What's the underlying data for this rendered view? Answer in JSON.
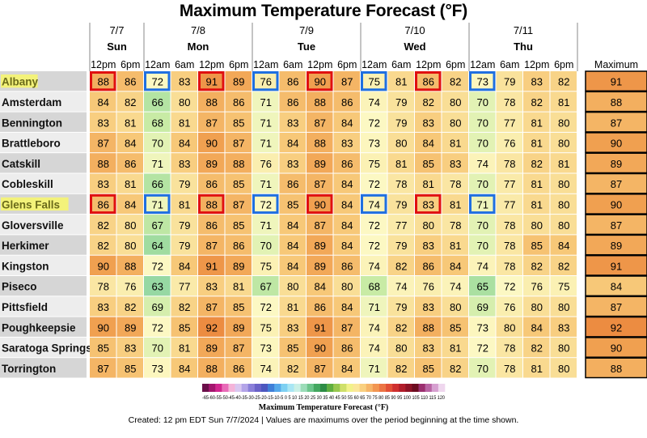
{
  "title": "Maximum Temperature Forecast (°F)",
  "footer": "Created: 12 pm EDT Sun 7/7/2024  |  Values are maximums over the period beginning at the time shown.",
  "colorbar_label": "Maximum Temperature Forecast (°F)",
  "colorbar_ticks": "-65-60-55-50-45-40-35-30-25-20-15-10-5 0  5 10 15 20 25 30 35 40 45 50 55 60 65 70 75 80 85 90 95 100 105 110 115 120",
  "max_header": "Maximum",
  "days": [
    {
      "date": "7/7",
      "day": "Sun",
      "span": 2
    },
    {
      "date": "7/8",
      "day": "Mon",
      "span": 4
    },
    {
      "date": "7/9",
      "day": "Tue",
      "span": 4
    },
    {
      "date": "7/10",
      "day": "Wed",
      "span": 4
    },
    {
      "date": "7/11",
      "day": "Thu",
      "span": 4
    }
  ],
  "times": [
    "12pm",
    "6pm",
    "12am",
    "6am",
    "12pm",
    "6pm",
    "12am",
    "6am",
    "12pm",
    "6pm",
    "12am",
    "6am",
    "12pm",
    "6pm",
    "12am",
    "6am",
    "12pm",
    "6pm"
  ],
  "highlighted_locations": [
    "Albany",
    "Glens Falls"
  ],
  "chart_data": {
    "type": "heatmap",
    "title": "Maximum Temperature Forecast (°F)",
    "x": [
      "12pm",
      "6pm",
      "12am",
      "6am",
      "12pm",
      "6pm",
      "12am",
      "6am",
      "12pm",
      "6pm",
      "12am",
      "6am",
      "12pm",
      "6pm",
      "12am",
      "6am",
      "12pm",
      "6pm"
    ],
    "y": [
      "Albany",
      "Amsterdam",
      "Bennington",
      "Brattleboro",
      "Catskill",
      "Cobleskill",
      "Glens Falls",
      "Gloversville",
      "Herkimer",
      "Kingston",
      "Piseco",
      "Pittsfield",
      "Poughkeepsie",
      "Saratoga Springs",
      "Torrington"
    ],
    "values": [
      [
        88,
        86,
        72,
        83,
        91,
        89,
        76,
        86,
        90,
        87,
        75,
        81,
        86,
        82,
        73,
        79,
        83,
        82
      ],
      [
        84,
        82,
        66,
        80,
        88,
        86,
        71,
        86,
        88,
        86,
        74,
        79,
        82,
        80,
        70,
        78,
        82,
        81
      ],
      [
        83,
        81,
        68,
        81,
        87,
        85,
        71,
        83,
        87,
        84,
        72,
        79,
        83,
        80,
        70,
        77,
        81,
        80
      ],
      [
        87,
        84,
        70,
        84,
        90,
        87,
        71,
        84,
        88,
        83,
        73,
        80,
        84,
        81,
        70,
        76,
        81,
        80
      ],
      [
        88,
        86,
        71,
        83,
        89,
        88,
        76,
        83,
        89,
        86,
        75,
        81,
        85,
        83,
        74,
        78,
        82,
        81
      ],
      [
        83,
        81,
        66,
        79,
        86,
        85,
        71,
        86,
        87,
        84,
        72,
        78,
        81,
        78,
        70,
        77,
        81,
        80
      ],
      [
        86,
        84,
        71,
        81,
        88,
        87,
        72,
        85,
        90,
        84,
        74,
        79,
        83,
        81,
        71,
        77,
        81,
        80
      ],
      [
        82,
        80,
        67,
        79,
        86,
        85,
        71,
        84,
        87,
        84,
        72,
        77,
        80,
        78,
        70,
        78,
        80,
        80
      ],
      [
        82,
        80,
        64,
        79,
        87,
        86,
        70,
        84,
        89,
        84,
        72,
        79,
        83,
        81,
        70,
        78,
        85,
        84
      ],
      [
        90,
        88,
        72,
        84,
        91,
        89,
        75,
        84,
        89,
        86,
        74,
        82,
        86,
        84,
        74,
        78,
        82,
        82
      ],
      [
        78,
        76,
        63,
        77,
        83,
        81,
        67,
        80,
        84,
        80,
        68,
        74,
        76,
        74,
        65,
        72,
        76,
        75
      ],
      [
        83,
        82,
        69,
        82,
        87,
        85,
        72,
        81,
        86,
        84,
        71,
        79,
        83,
        80,
        69,
        76,
        80,
        80
      ],
      [
        90,
        89,
        72,
        85,
        92,
        89,
        75,
        83,
        91,
        87,
        74,
        82,
        88,
        85,
        73,
        80,
        84,
        83
      ],
      [
        85,
        83,
        70,
        81,
        89,
        87,
        73,
        85,
        90,
        86,
        74,
        80,
        83,
        81,
        72,
        78,
        82,
        80
      ],
      [
        87,
        85,
        73,
        84,
        88,
        86,
        74,
        82,
        87,
        84,
        71,
        82,
        85,
        82,
        70,
        78,
        81,
        80
      ]
    ],
    "row_max": [
      91,
      88,
      87,
      90,
      89,
      87,
      90,
      87,
      89,
      91,
      84,
      87,
      92,
      90,
      88
    ],
    "boxes": {
      "red": [
        [
          0,
          0
        ],
        [
          0,
          4
        ],
        [
          0,
          8
        ],
        [
          0,
          12
        ],
        [
          6,
          0
        ],
        [
          6,
          4
        ],
        [
          6,
          8
        ],
        [
          6,
          12
        ]
      ],
      "blue": [
        [
          0,
          2
        ],
        [
          0,
          6
        ],
        [
          0,
          10
        ],
        [
          0,
          14
        ],
        [
          6,
          2
        ],
        [
          6,
          6
        ],
        [
          6,
          10
        ],
        [
          6,
          14
        ]
      ]
    }
  }
}
